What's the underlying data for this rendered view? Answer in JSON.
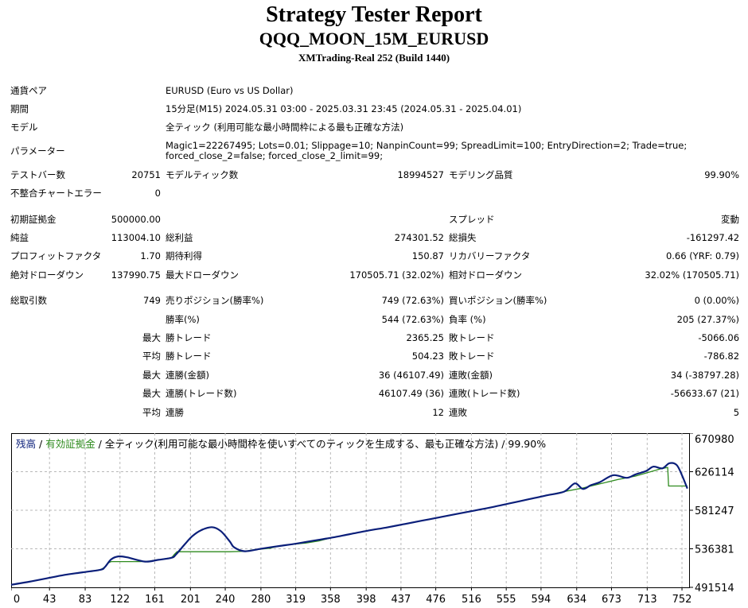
{
  "header": {
    "title": "Strategy Tester Report",
    "subtitle": "QQQ_MOON_15M_EURUSD",
    "server": "XMTrading-Real 252 (Build 1440)"
  },
  "info": {
    "symbol_label": "通貨ペア",
    "symbol_value": "EURUSD (Euro vs US Dollar)",
    "period_label": "期間",
    "period_value": "15分足(M15) 2024.05.31 03:00 - 2025.03.31 23:45 (2024.05.31 - 2025.04.01)",
    "model_label": "モデル",
    "model_value": "全ティック (利用可能な最小時間枠による最も正確な方法)",
    "params_label": "パラメーター",
    "params_value": "Magic1=22267495; Lots=0.01; Slippage=10; NanpinCount=99; SpreadLimit=100; EntryDirection=2; Trade=true; forced_close_2=false; forced_close_2_limit=99;"
  },
  "stats": {
    "bars_label": "テストバー数",
    "bars_value": "20751",
    "ticks_label": "モデルティック数",
    "ticks_value": "18994527",
    "quality_label": "モデリング品質",
    "quality_value": "99.90%",
    "mismatch_label": "不整合チャートエラー",
    "mismatch_value": "0",
    "deposit_label": "初期証拠金",
    "deposit_value": "500000.00",
    "spread_label": "スプレッド",
    "spread_value": "変動",
    "net_label": "純益",
    "net_value": "113004.10",
    "gross_profit_label": "総利益",
    "gross_profit_value": "274301.52",
    "gross_loss_label": "総損失",
    "gross_loss_value": "-161297.42",
    "pf_label": "プロフィットファクタ",
    "pf_value": "1.70",
    "expected_label": "期待利得",
    "expected_value": "150.87",
    "recovery_label": "リカバリーファクタ",
    "recovery_value": "0.66 (YRF: 0.79)",
    "abs_dd_label": "絶対ドローダウン",
    "abs_dd_value": "137990.75",
    "max_dd_label": "最大ドローダウン",
    "max_dd_value": "170505.71 (32.02%)",
    "rel_dd_label": "相対ドローダウン",
    "rel_dd_value": "32.02% (170505.71)"
  },
  "trades": {
    "total_label": "総取引数",
    "total_value": "749",
    "short_label": "売りポジション(勝率%)",
    "short_value": "749 (72.63%)",
    "long_label": "買いポジション(勝率%)",
    "long_value": "0 (0.00%)",
    "win_rate_label": "勝率(%)",
    "win_rate_value": "544 (72.63%)",
    "loss_rate_label": "負率 (%)",
    "loss_rate_value": "205 (27.37%)",
    "max_label": "最大",
    "avg_label": "平均",
    "win_trade_label": "勝トレード",
    "loss_trade_label": "敗トレード",
    "largest_win": "2365.25",
    "largest_loss": "-5066.06",
    "avg_win": "504.23",
    "avg_loss": "-786.82",
    "cons_wins_amt_label": "連勝(金額)",
    "cons_wins_amt": "36 (46107.49)",
    "cons_losses_amt_label": "連敗(金額)",
    "cons_losses_amt": "34 (-38797.28)",
    "cons_wins_cnt_label": "連勝(トレード数)",
    "cons_wins_cnt": "46107.49 (36)",
    "cons_losses_cnt_label": "連敗(トレード数)",
    "cons_losses_cnt": "-56633.67 (21)",
    "avg_cons_wins_label": "連勝",
    "avg_cons_wins": "12",
    "avg_cons_losses_label": "連敗",
    "avg_cons_losses": "5"
  },
  "chart_data": {
    "type": "line",
    "legend": {
      "balance": "残高",
      "sep1": " / ",
      "equity": "有効証拠金",
      "sep2": " / ",
      "rest": "全ティック(利用可能な最小時間枠を使いすべてのティックを生成する、最も正確な方法) / 99.90%"
    },
    "x_ticks": [
      "0",
      "43",
      "83",
      "122",
      "161",
      "201",
      "240",
      "280",
      "319",
      "358",
      "398",
      "437",
      "476",
      "516",
      "555",
      "594",
      "634",
      "673",
      "713",
      "752"
    ],
    "y_ticks": [
      "670980",
      "626114",
      "581247",
      "536381",
      "491514"
    ],
    "ylim": [
      491514,
      670980
    ],
    "xlim": [
      0,
      760
    ],
    "colors": {
      "balance": "#0b1f7a",
      "equity": "#2e8b1e",
      "grid": "#b8b8b8"
    },
    "series": [
      {
        "name": "残高",
        "x": [
          0,
          20,
          40,
          60,
          80,
          100,
          105,
          112,
          120,
          130,
          150,
          165,
          180,
          185,
          195,
          203,
          213,
          225,
          235,
          245,
          250,
          262,
          280,
          300,
          320,
          340,
          360,
          380,
          400,
          420,
          440,
          460,
          480,
          500,
          520,
          540,
          560,
          580,
          600,
          620,
          632,
          641,
          650,
          660,
          675,
          690,
          700,
          712,
          720,
          730,
          738,
          746,
          752,
          758
        ],
        "y": [
          494500,
          498000,
          502000,
          506000,
          509000,
          512000,
          515000,
          524000,
          527500,
          526500,
          521500,
          523500,
          526000,
          530000,
          542000,
          551000,
          558000,
          561500,
          557000,
          545000,
          538000,
          533500,
          536500,
          539500,
          542500,
          546000,
          549500,
          553500,
          557500,
          561000,
          565000,
          569000,
          573000,
          577000,
          581000,
          585000,
          589500,
          594000,
          598500,
          603000,
          612500,
          606000,
          610500,
          614000,
          622000,
          619000,
          623000,
          627000,
          632000,
          630000,
          636000,
          634000,
          622000,
          606500
        ]
      },
      {
        "name": "有効証拠金",
        "x": [
          0,
          20,
          40,
          60,
          80,
          100,
          105,
          108,
          112,
          145,
          155,
          165,
          180,
          183,
          186,
          240,
          245,
          262,
          270,
          290,
          300,
          315,
          330,
          345,
          360,
          380,
          400,
          420,
          440,
          460,
          480,
          500,
          520,
          540,
          560,
          580,
          600,
          620,
          640,
          660,
          680,
          700,
          720,
          730,
          736,
          737,
          740,
          758
        ],
        "y": [
          494500,
          498000,
          502000,
          506000,
          509000,
          512000,
          515000,
          519500,
          521500,
          521500,
          522000,
          523500,
          526000,
          530000,
          533000,
          533000,
          533000,
          533500,
          535000,
          537000,
          539500,
          541500,
          543000,
          545500,
          549500,
          553500,
          557500,
          561000,
          565000,
          569000,
          573000,
          577000,
          581000,
          585000,
          589500,
          594000,
          598500,
          603000,
          607000,
          612000,
          617000,
          621000,
          627000,
          630000,
          631000,
          609500,
          609500,
          609500
        ]
      }
    ]
  }
}
